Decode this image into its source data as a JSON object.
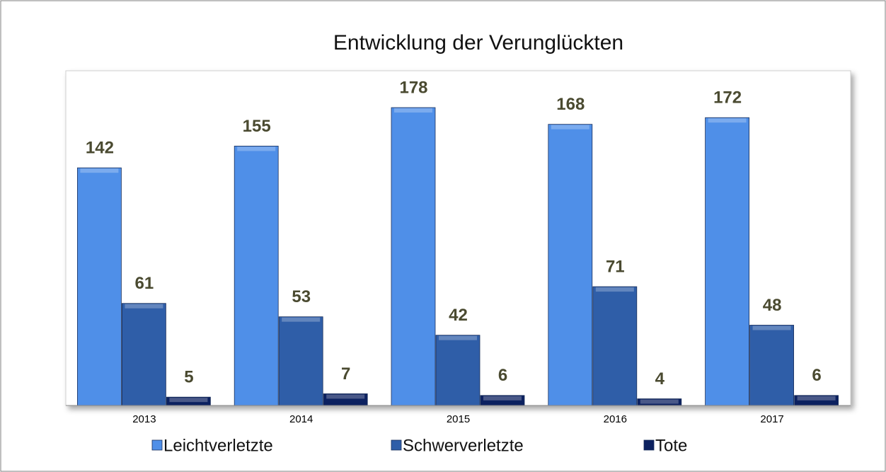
{
  "chart_data": {
    "type": "bar",
    "title": "Entwicklung der Verunglückten",
    "categories": [
      "2013",
      "2014",
      "2015",
      "2016",
      "2017"
    ],
    "series": [
      {
        "name": "Leichtverletzte",
        "color": "#4f8fe8",
        "values": [
          142,
          155,
          178,
          168,
          172
        ]
      },
      {
        "name": "Schwerverletzte",
        "color": "#2f5ea8",
        "values": [
          61,
          53,
          42,
          71,
          48
        ]
      },
      {
        "name": "Tote",
        "color": "#0c2160",
        "values": [
          5,
          7,
          6,
          4,
          6
        ]
      }
    ],
    "ylim": [
      0,
      200
    ],
    "legend": "bottom"
  }
}
